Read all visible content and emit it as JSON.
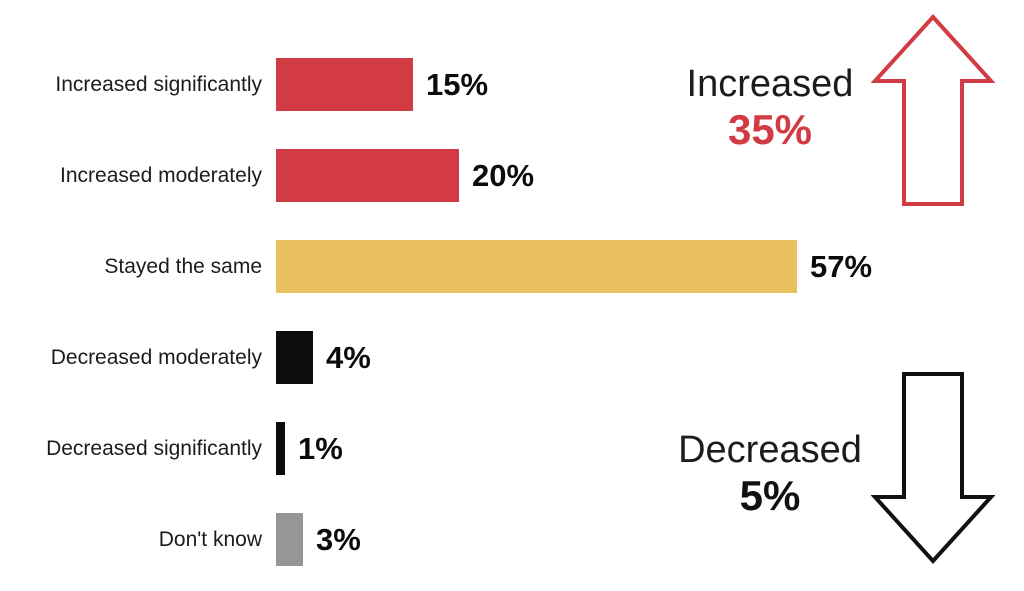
{
  "chart_data": {
    "type": "bar",
    "orientation": "horizontal",
    "title": "",
    "xlabel": "",
    "ylabel": "",
    "unit": "%",
    "xlim": [
      0,
      60
    ],
    "grid": false,
    "legend": null,
    "rows": [
      {
        "category": "Increased significantly",
        "value": 15,
        "value_label": "15%",
        "color": "#D23A44"
      },
      {
        "category": "Increased moderately",
        "value": 20,
        "value_label": "20%",
        "color": "#D23A44"
      },
      {
        "category": "Stayed the same",
        "value": 57,
        "value_label": "57%",
        "color": "#E9C161"
      },
      {
        "category": "Decreased moderately",
        "value": 4,
        "value_label": "4%",
        "color": "#0d0d0d"
      },
      {
        "category": "Decreased significantly",
        "value": 1,
        "value_label": "1%",
        "color": "#0d0d0d"
      },
      {
        "category": "Don't know",
        "value": 3,
        "value_label": "3%",
        "color": "#969696"
      }
    ]
  },
  "annotations": {
    "increased": {
      "label": "Increased",
      "value": 35,
      "value_label": "35%",
      "arrow_direction": "up",
      "arrow_color": "#D23A44",
      "value_color": "#D23A44"
    },
    "decreased": {
      "label": "Decreased",
      "value": 5,
      "value_label": "5%",
      "arrow_direction": "down",
      "arrow_color": "#111111",
      "value_color": "#111111"
    }
  },
  "colors": {
    "background": "#ffffff",
    "bar_red": "#D23A44",
    "bar_gold": "#E9C161",
    "bar_black": "#0d0d0d",
    "bar_gray": "#969696",
    "label_text": "#1c1c1c",
    "value_text": "#0b0b0b"
  }
}
